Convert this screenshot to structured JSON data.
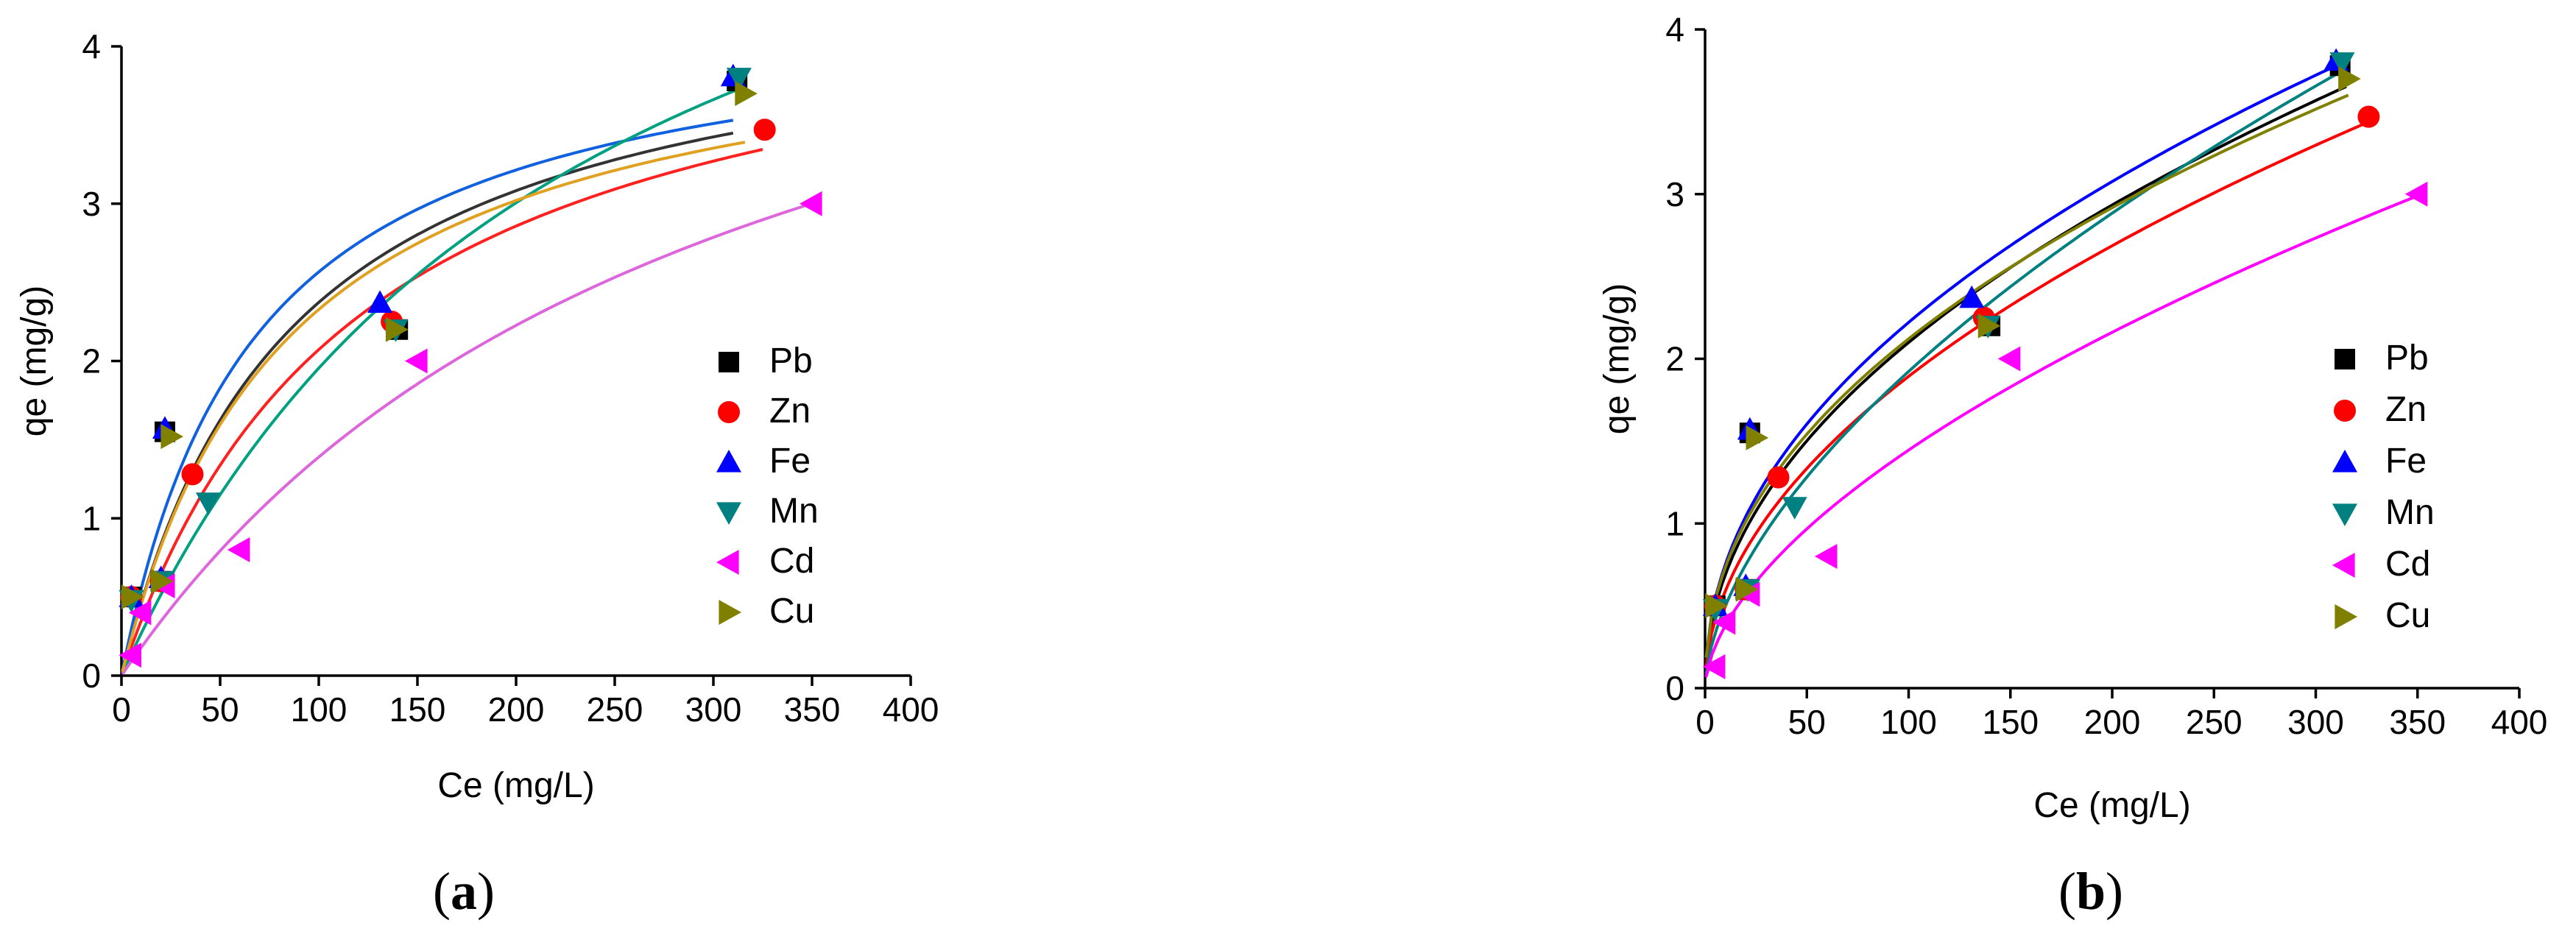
{
  "chart_data": [
    {
      "type": "scatter",
      "panel_label": "a",
      "xlabel": "Ce (mg/L)",
      "ylabel": "qe (mg/g)",
      "xlim": [
        0,
        400
      ],
      "ylim": [
        0,
        4
      ],
      "xticks": [
        0,
        50,
        100,
        150,
        200,
        250,
        300,
        350,
        400
      ],
      "yticks": [
        0,
        1,
        2,
        3,
        4
      ],
      "legend_position": "right",
      "series": [
        {
          "name": "Pb",
          "marker": "square",
          "color": "#000000",
          "points": [
            [
              5,
              0.5
            ],
            [
              20,
              0.6
            ],
            [
              22,
              1.55
            ],
            [
              140,
              2.2
            ],
            [
              312,
              3.78
            ]
          ],
          "fit": {
            "model": "langmuir",
            "qmax": 4.4,
            "K": 0.0117,
            "x_end": 310,
            "color": "#333333"
          }
        },
        {
          "name": "Zn",
          "marker": "circle",
          "color": "#ff0000",
          "points": [
            [
              5,
              0.5
            ],
            [
              20,
              0.6
            ],
            [
              36,
              1.28
            ],
            [
              137,
              2.25
            ],
            [
              326,
              3.47
            ]
          ],
          "fit": {
            "model": "langmuir",
            "qmax": 4.6,
            "K": 0.0082,
            "x_end": 325,
            "color": "#ff2020"
          }
        },
        {
          "name": "Fe",
          "marker": "triangle-up",
          "color": "#0000ff",
          "points": [
            [
              5,
              0.5
            ],
            [
              20,
              0.62
            ],
            [
              22,
              1.57
            ],
            [
              131,
              2.37
            ],
            [
              310,
              3.81
            ]
          ],
          "fit": {
            "model": "langmuir",
            "qmax": 4.3,
            "K": 0.0148,
            "x_end": 310,
            "color": "#1060e0"
          }
        },
        {
          "name": "Mn",
          "marker": "triangle-down",
          "color": "#008080",
          "points": [
            [
              5,
              0.48
            ],
            [
              21,
              0.6
            ],
            [
              44,
              1.1
            ],
            [
              139,
              2.2
            ],
            [
              313,
              3.8
            ]
          ],
          "fit": {
            "model": "langmuir",
            "qmax": 6.5,
            "K": 0.0043,
            "x_end": 315,
            "color": "#00a080"
          }
        },
        {
          "name": "Cd",
          "marker": "triangle-left",
          "color": "#ff00ff",
          "points": [
            [
              5,
              0.13
            ],
            [
              10,
              0.4
            ],
            [
              22,
              0.57
            ],
            [
              60,
              0.8
            ],
            [
              150,
              2.0
            ],
            [
              350,
              3.0
            ]
          ],
          "fit": {
            "model": "langmuir",
            "qmax": 5.6,
            "K": 0.0033,
            "x_end": 350,
            "color": "#dd66dd"
          }
        },
        {
          "name": "Cu",
          "marker": "triangle-right",
          "color": "#808000",
          "points": [
            [
              5,
              0.5
            ],
            [
              20,
              0.6
            ],
            [
              25,
              1.52
            ],
            [
              139,
              2.2
            ],
            [
              316,
              3.7
            ]
          ],
          "fit": {
            "model": "langmuir",
            "qmax": 4.3,
            "K": 0.0118,
            "x_end": 316,
            "color": "#e0a020"
          }
        }
      ]
    },
    {
      "type": "scatter",
      "panel_label": "b",
      "xlabel": "Ce (mg/L)",
      "ylabel": "qe (mg/g)",
      "xlim": [
        0,
        400
      ],
      "ylim": [
        0,
        4
      ],
      "xticks": [
        0,
        50,
        100,
        150,
        200,
        250,
        300,
        350,
        400
      ],
      "yticks": [
        0,
        1,
        2,
        3,
        4
      ],
      "legend_position": "right",
      "series": [
        {
          "name": "Pb",
          "marker": "square",
          "color": "#000000",
          "points": [
            [
              5,
              0.5
            ],
            [
              20,
              0.6
            ],
            [
              22,
              1.55
            ],
            [
              140,
              2.2
            ],
            [
              312,
              3.78
            ]
          ],
          "fit": {
            "model": "freundlich",
            "Kf": 0.227,
            "n": 0.483,
            "x_end": 315,
            "color": "#000000"
          }
        },
        {
          "name": "Zn",
          "marker": "circle",
          "color": "#ff0000",
          "points": [
            [
              5,
              0.5
            ],
            [
              20,
              0.6
            ],
            [
              36,
              1.28
            ],
            [
              137,
              2.25
            ],
            [
              326,
              3.47
            ]
          ],
          "fit": {
            "model": "freundlich",
            "Kf": 0.185,
            "n": 0.505,
            "x_end": 325,
            "color": "#ff0000"
          }
        },
        {
          "name": "Fe",
          "marker": "triangle-up",
          "color": "#0000ff",
          "points": [
            [
              5,
              0.5
            ],
            [
              20,
              0.62
            ],
            [
              22,
              1.57
            ],
            [
              131,
              2.37
            ],
            [
              310,
              3.81
            ]
          ],
          "fit": {
            "model": "freundlich",
            "Kf": 0.255,
            "n": 0.47,
            "x_end": 310,
            "color": "#0000ff"
          }
        },
        {
          "name": "Mn",
          "marker": "triangle-down",
          "color": "#008080",
          "points": [
            [
              5,
              0.48
            ],
            [
              21,
              0.6
            ],
            [
              44,
              1.1
            ],
            [
              139,
              2.2
            ],
            [
              313,
              3.8
            ]
          ],
          "fit": {
            "model": "freundlich",
            "Kf": 0.13,
            "n": 0.585,
            "x_end": 315,
            "color": "#008080"
          }
        },
        {
          "name": "Cd",
          "marker": "triangle-left",
          "color": "#ff00ff",
          "points": [
            [
              5,
              0.13
            ],
            [
              10,
              0.4
            ],
            [
              22,
              0.57
            ],
            [
              60,
              0.8
            ],
            [
              150,
              2.0
            ],
            [
              350,
              3.0
            ]
          ],
          "fit": {
            "model": "freundlich",
            "Kf": 0.1,
            "n": 0.58,
            "x_end": 350,
            "color": "#ff00ff"
          }
        },
        {
          "name": "Cu",
          "marker": "triangle-right",
          "color": "#808000",
          "points": [
            [
              5,
              0.5
            ],
            [
              20,
              0.6
            ],
            [
              25,
              1.52
            ],
            [
              139,
              2.2
            ],
            [
              316,
              3.7
            ]
          ],
          "fit": {
            "model": "freundlich",
            "Kf": 0.255,
            "n": 0.46,
            "x_end": 316,
            "color": "#808000"
          }
        }
      ]
    }
  ]
}
